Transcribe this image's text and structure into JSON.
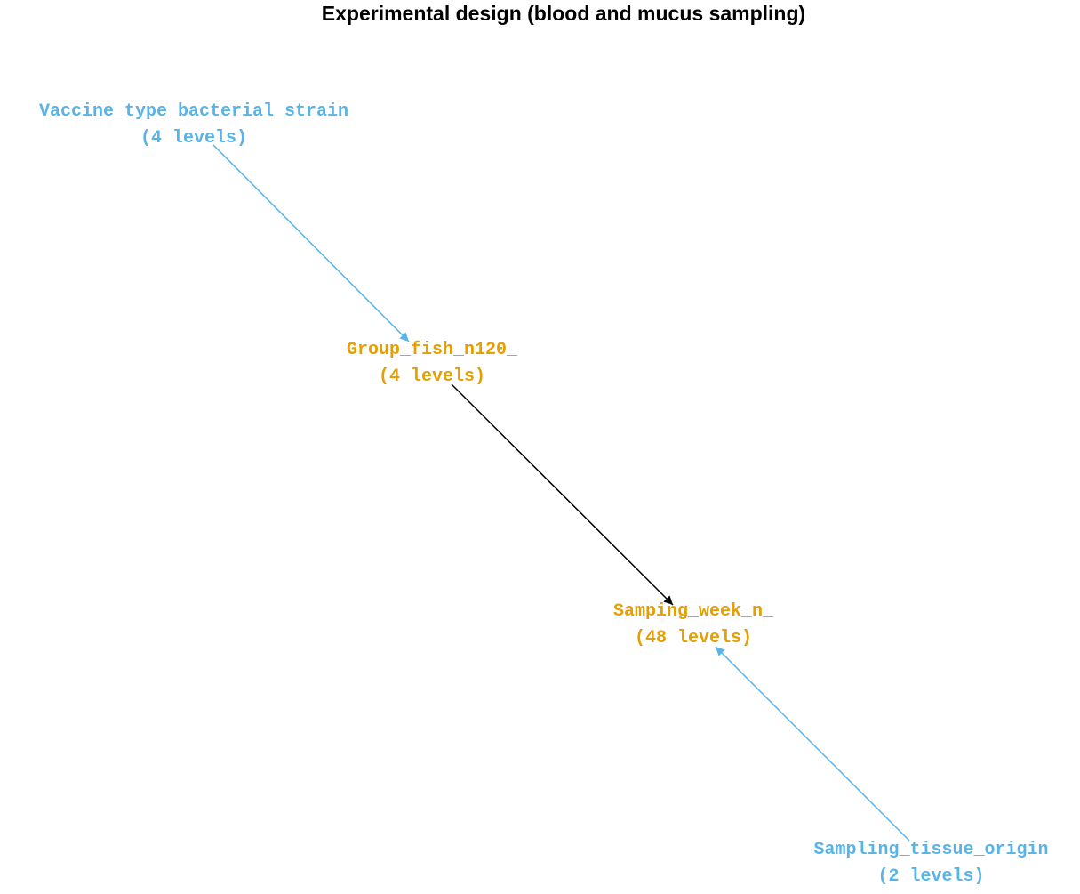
{
  "title": "Experimental design (blood and mucus sampling)",
  "colors": {
    "factor_blue": "#56b4e9",
    "factor_orange": "#e69f00",
    "edge_black": "#000000"
  },
  "nodes": {
    "vaccine": {
      "name": "Vaccine_type_bacterial_strain",
      "levels": "(4 levels)",
      "color": "#56b4e9"
    },
    "group": {
      "name": "Group_fish_n120_",
      "levels": "(4 levels)",
      "color": "#e69f00"
    },
    "week": {
      "name": "Samping_week_n_",
      "levels": "(48 levels)",
      "color": "#e69f00"
    },
    "tissue": {
      "name": "Sampling_tissue_origin",
      "levels": "(2 levels)",
      "color": "#56b4e9"
    }
  },
  "edges": [
    {
      "from": "Vaccine_type_bacterial_strain",
      "to": "Group_fish_n120_",
      "color": "#56b4e9"
    },
    {
      "from": "Group_fish_n120_",
      "to": "Samping_week_n_",
      "color": "#000000"
    },
    {
      "from": "Sampling_tissue_origin",
      "to": "Samping_week_n_",
      "color": "#56b4e9"
    }
  ]
}
